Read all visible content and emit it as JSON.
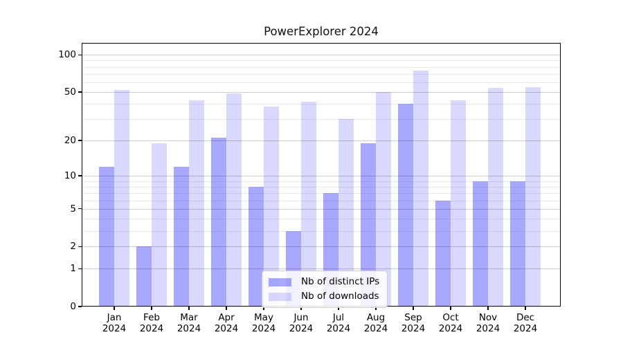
{
  "window": {
    "background": "#ffffff"
  },
  "chart_data": {
    "type": "bar",
    "title": "PowerExplorer 2024",
    "categories": [
      "Jan",
      "Feb",
      "Mar",
      "Apr",
      "May",
      "Jun",
      "Jul",
      "Aug",
      "Sep",
      "Oct",
      "Nov",
      "Dec"
    ],
    "category_year": "2024",
    "series": [
      {
        "name": "Nb of distinct IPs",
        "color": "rgba(0,0,255,0.34)",
        "values": [
          12,
          2,
          12,
          21,
          8,
          3,
          7,
          19,
          40,
          6,
          9,
          9
        ]
      },
      {
        "name": "Nb of downloads",
        "color": "rgba(0,0,255,0.15)",
        "values": [
          52,
          19,
          43,
          49,
          38,
          42,
          30,
          50,
          75,
          43,
          54,
          55
        ]
      }
    ],
    "xlabel": "",
    "ylabel": "",
    "y_scale": "log1p",
    "y_major_ticks": [
      0,
      1,
      2,
      5,
      10,
      20,
      50,
      100
    ],
    "y_minor_ticks": [
      3,
      4,
      6,
      7,
      8,
      9,
      30,
      40,
      60,
      70,
      80,
      90
    ],
    "ylim": [
      0,
      125
    ],
    "grid": "on",
    "legend_position": "lower center",
    "colors": {
      "major_grid": "#cccccc",
      "minor_grid": "#eaeaea",
      "axis": "#000000",
      "text": "#000000"
    }
  }
}
